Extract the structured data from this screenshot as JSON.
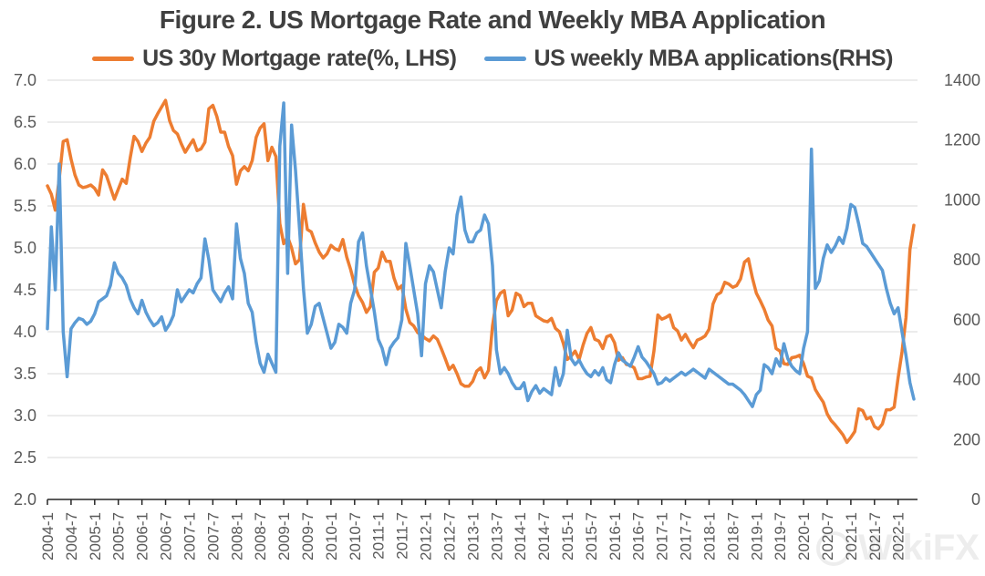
{
  "header": {
    "title": "Figure 2. US Mortgage Rate and Weekly MBA Application"
  },
  "watermark": {
    "text": "WikiFX"
  },
  "chart_data": {
    "type": "line",
    "title": "Figure 2. US Mortgage Rate and Weekly MBA Application",
    "legend_position": "top",
    "grid": true,
    "x_start": "2004-01",
    "x_end": "2022-05",
    "x_step": "1 month (series values are monthly samples of weekly data)",
    "x_tick_labels": [
      "2004-1",
      "2004-7",
      "2005-1",
      "2005-7",
      "2006-1",
      "2006-7",
      "2007-1",
      "2007-7",
      "2008-1",
      "2008-7",
      "2009-1",
      "2009-7",
      "2010-1",
      "2010-7",
      "2011-1",
      "2011-7",
      "2012-1",
      "2012-7",
      "2013-1",
      "2013-7",
      "2014-1",
      "2014-7",
      "2015-1",
      "2015-7",
      "2016-1",
      "2016-7",
      "2017-1",
      "2017-7",
      "2018-1",
      "2018-7",
      "2019-1",
      "2019-7",
      "2020-1",
      "2020-7",
      "2021-1",
      "2021-7",
      "2022-1"
    ],
    "x_ticks_every_months": 6,
    "left_axis": {
      "min": 2.0,
      "max": 7.0,
      "step": 0.5,
      "tick_labels": [
        "2.0",
        "2.5",
        "3.0",
        "3.5",
        "4.0",
        "4.5",
        "5.0",
        "5.5",
        "6.0",
        "6.5",
        "7.0"
      ]
    },
    "right_axis": {
      "min": 0,
      "max": 1400,
      "step": 200,
      "tick_labels": [
        "0",
        "200",
        "400",
        "600",
        "800",
        "1000",
        "1200",
        "1400"
      ]
    },
    "colors": {
      "gridline": "#D9D9D9",
      "axis_line": "#262626",
      "axis_text": "#595959",
      "title_text": "#404040"
    },
    "series": [
      {
        "name": "US 30y Mortgage rate(%, LHS)",
        "axis": "left",
        "color": "#ED7D31",
        "values": [
          5.74,
          5.64,
          5.45,
          5.83,
          6.27,
          6.29,
          6.06,
          5.87,
          5.75,
          5.72,
          5.73,
          5.75,
          5.71,
          5.63,
          5.93,
          5.86,
          5.72,
          5.58,
          5.7,
          5.82,
          5.77,
          6.07,
          6.33,
          6.27,
          6.15,
          6.25,
          6.32,
          6.51,
          6.6,
          6.68,
          6.76,
          6.52,
          6.4,
          6.36,
          6.24,
          6.14,
          6.22,
          6.29,
          6.16,
          6.18,
          6.26,
          6.66,
          6.7,
          6.57,
          6.38,
          6.38,
          6.21,
          6.1,
          5.76,
          5.92,
          5.97,
          5.92,
          6.04,
          6.32,
          6.43,
          6.48,
          6.04,
          6.2,
          6.09,
          5.29,
          5.05,
          5.13,
          5.0,
          4.81,
          4.86,
          5.52,
          5.22,
          5.19,
          5.06,
          4.95,
          4.88,
          4.93,
          5.03,
          4.99,
          4.97,
          5.1,
          4.89,
          4.74,
          4.56,
          4.43,
          4.35,
          4.23,
          4.3,
          4.71,
          4.76,
          4.95,
          4.84,
          4.84,
          4.64,
          4.51,
          4.55,
          4.27,
          4.11,
          4.07,
          3.99,
          3.96,
          3.92,
          3.89,
          3.95,
          3.91,
          3.8,
          3.68,
          3.55,
          3.6,
          3.5,
          3.38,
          3.35,
          3.35,
          3.41,
          3.53,
          3.57,
          3.45,
          3.54,
          4.07,
          4.37,
          4.46,
          4.49,
          4.19,
          4.26,
          4.46,
          4.43,
          4.3,
          4.34,
          4.34,
          4.19,
          4.16,
          4.13,
          4.12,
          4.16,
          4.04,
          4.0,
          3.86,
          3.67,
          3.71,
          3.77,
          3.67,
          3.84,
          3.98,
          4.05,
          3.91,
          3.89,
          3.8,
          3.94,
          3.96,
          3.87,
          3.66,
          3.69,
          3.61,
          3.6,
          3.57,
          3.44,
          3.44,
          3.46,
          3.47,
          3.77,
          4.2,
          4.15,
          4.17,
          4.2,
          4.05,
          4.01,
          3.9,
          3.97,
          3.88,
          3.81,
          3.9,
          3.92,
          3.95,
          4.03,
          4.33,
          4.44,
          4.47,
          4.59,
          4.57,
          4.53,
          4.55,
          4.63,
          4.83,
          4.87,
          4.64,
          4.46,
          4.37,
          4.27,
          4.14,
          4.07,
          3.8,
          3.77,
          3.62,
          3.61,
          3.69,
          3.7,
          3.72,
          3.62,
          3.47,
          3.45,
          3.31,
          3.23,
          3.16,
          3.02,
          2.94,
          2.89,
          2.83,
          2.77,
          2.68,
          2.74,
          2.81,
          3.08,
          3.06,
          2.96,
          2.98,
          2.87,
          2.84,
          2.9,
          3.07,
          3.07,
          3.1,
          3.45,
          3.76,
          4.17,
          4.98,
          5.27
        ]
      },
      {
        "name": "US weekly MBA applications(RHS)",
        "axis": "right",
        "color": "#5B9BD5",
        "values": [
          570,
          910,
          700,
          1120,
          560,
          410,
          570,
          590,
          605,
          600,
          585,
          595,
          620,
          660,
          670,
          680,
          715,
          790,
          755,
          740,
          715,
          670,
          640,
          620,
          665,
          625,
          600,
          580,
          590,
          610,
          565,
          585,
          615,
          700,
          660,
          680,
          700,
          690,
          720,
          740,
          870,
          800,
          700,
          680,
          660,
          690,
          710,
          670,
          920,
          805,
          755,
          655,
          625,
          525,
          455,
          425,
          485,
          455,
          425,
          1180,
          1324,
          755,
          1250,
          1100,
          905,
          705,
          555,
          585,
          645,
          655,
          605,
          555,
          505,
          525,
          585,
          575,
          555,
          655,
          700,
          860,
          890,
          780,
          705,
          627,
          535,
          505,
          450,
          505,
          525,
          540,
          600,
          855,
          780,
          700,
          620,
          480,
          720,
          780,
          760,
          700,
          640,
          760,
          840,
          820,
          950,
          1010,
          900,
          860,
          860,
          890,
          900,
          950,
          920,
          780,
          500,
          420,
          440,
          420,
          390,
          370,
          370,
          390,
          330,
          360,
          380,
          355,
          370,
          360,
          350,
          440,
          380,
          420,
          565,
          470,
          450,
          465,
          440,
          420,
          410,
          430,
          415,
          440,
          400,
          390,
          450,
          490,
          465,
          455,
          445,
          475,
          510,
          475,
          460,
          440,
          420,
          385,
          390,
          405,
          395,
          405,
          415,
          425,
          415,
          425,
          435,
          425,
          415,
          405,
          435,
          425,
          415,
          405,
          395,
          385,
          385,
          375,
          365,
          350,
          330,
          310,
          350,
          365,
          450,
          440,
          420,
          470,
          445,
          520,
          470,
          445,
          430,
          420,
          505,
          560,
          1170,
          705,
          730,
          805,
          850,
          825,
          845,
          875,
          855,
          905,
          985,
          975,
          920,
          855,
          845,
          825,
          805,
          785,
          765,
          705,
          655,
          620,
          640,
          560,
          480,
          390,
          335
        ]
      }
    ]
  }
}
